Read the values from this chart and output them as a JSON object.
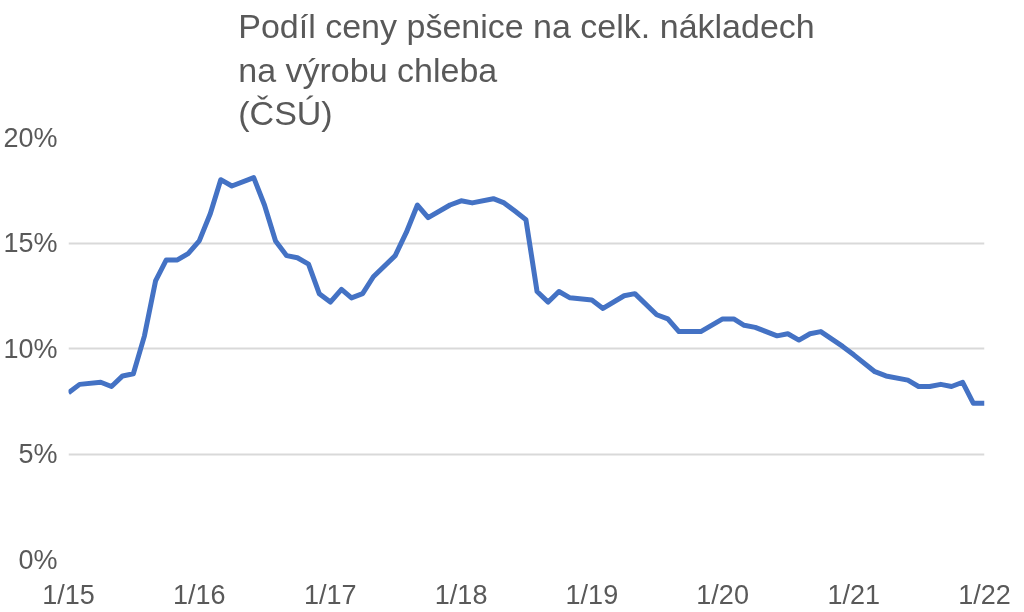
{
  "chart_data": {
    "type": "line",
    "title": "Podíl ceny pšenice na celk. nákladech\nna výrobu chleba\n(ČSÚ)",
    "x": [
      "2015-01",
      "2015-02",
      "2015-04",
      "2015-05",
      "2015-06",
      "2015-07",
      "2015-08",
      "2015-09",
      "2015-10",
      "2015-11",
      "2015-12",
      "2016-01",
      "2016-02",
      "2016-03",
      "2016-04",
      "2016-06",
      "2016-07",
      "2016-08",
      "2016-09",
      "2016-10",
      "2016-11",
      "2016-12",
      "2017-01",
      "2017-02",
      "2017-03",
      "2017-04",
      "2017-05",
      "2017-07",
      "2017-08",
      "2017-09",
      "2017-10",
      "2017-12",
      "2018-01",
      "2018-02",
      "2018-04",
      "2018-05",
      "2018-06",
      "2018-07",
      "2018-08",
      "2018-09",
      "2018-10",
      "2018-11",
      "2019-01",
      "2019-02",
      "2019-04",
      "2019-05",
      "2019-07",
      "2019-08",
      "2019-09",
      "2019-11",
      "2020-01",
      "2020-02",
      "2020-03",
      "2020-04",
      "2020-06",
      "2020-07",
      "2020-08",
      "2020-09",
      "2020-10",
      "2020-12",
      "2021-01",
      "2021-03",
      "2021-04",
      "2021-06",
      "2021-07",
      "2021-08",
      "2021-09",
      "2021-10",
      "2021-11",
      "2021-12",
      "2022-01"
    ],
    "series": [
      {
        "color": "#4472c4",
        "values": [
          7.9,
          8.3,
          8.4,
          8.2,
          8.7,
          8.8,
          10.6,
          13.2,
          14.2,
          14.2,
          14.5,
          15.1,
          16.4,
          18.0,
          17.7,
          18.1,
          16.8,
          15.1,
          14.4,
          14.3,
          14.0,
          12.6,
          12.2,
          12.8,
          12.4,
          12.6,
          13.4,
          14.4,
          15.5,
          16.8,
          16.2,
          16.8,
          17.0,
          16.9,
          17.1,
          16.9,
          16.5,
          16.1,
          12.7,
          12.2,
          12.7,
          12.4,
          12.3,
          11.9,
          12.5,
          12.6,
          11.6,
          11.4,
          10.8,
          10.8,
          11.4,
          11.4,
          11.1,
          11.0,
          10.6,
          10.7,
          10.4,
          10.7,
          10.8,
          10.1,
          9.7,
          8.9,
          8.7,
          8.5,
          8.2,
          8.2,
          8.3,
          8.2,
          8.4,
          7.4,
          7.4
        ]
      }
    ],
    "xlim": [
      "2015-01",
      "2022-01"
    ],
    "xticks": [
      {
        "value": "2015-01",
        "label": "1/15"
      },
      {
        "value": "2016-01",
        "label": "1/16"
      },
      {
        "value": "2017-01",
        "label": "1/17"
      },
      {
        "value": "2018-01",
        "label": "1/18"
      },
      {
        "value": "2019-01",
        "label": "1/19"
      },
      {
        "value": "2020-01",
        "label": "1/20"
      },
      {
        "value": "2021-01",
        "label": "1/21"
      },
      {
        "value": "2022-01",
        "label": "1/22"
      }
    ],
    "ylim": [
      0,
      20
    ],
    "yticks": [
      {
        "value": 0,
        "label": "0%"
      },
      {
        "value": 5,
        "label": "5%"
      },
      {
        "value": 10,
        "label": "10%"
      },
      {
        "value": 15,
        "label": "15%"
      },
      {
        "value": 20,
        "label": "20%"
      }
    ],
    "grid": "y",
    "marker": "none",
    "line_style": "solid"
  }
}
